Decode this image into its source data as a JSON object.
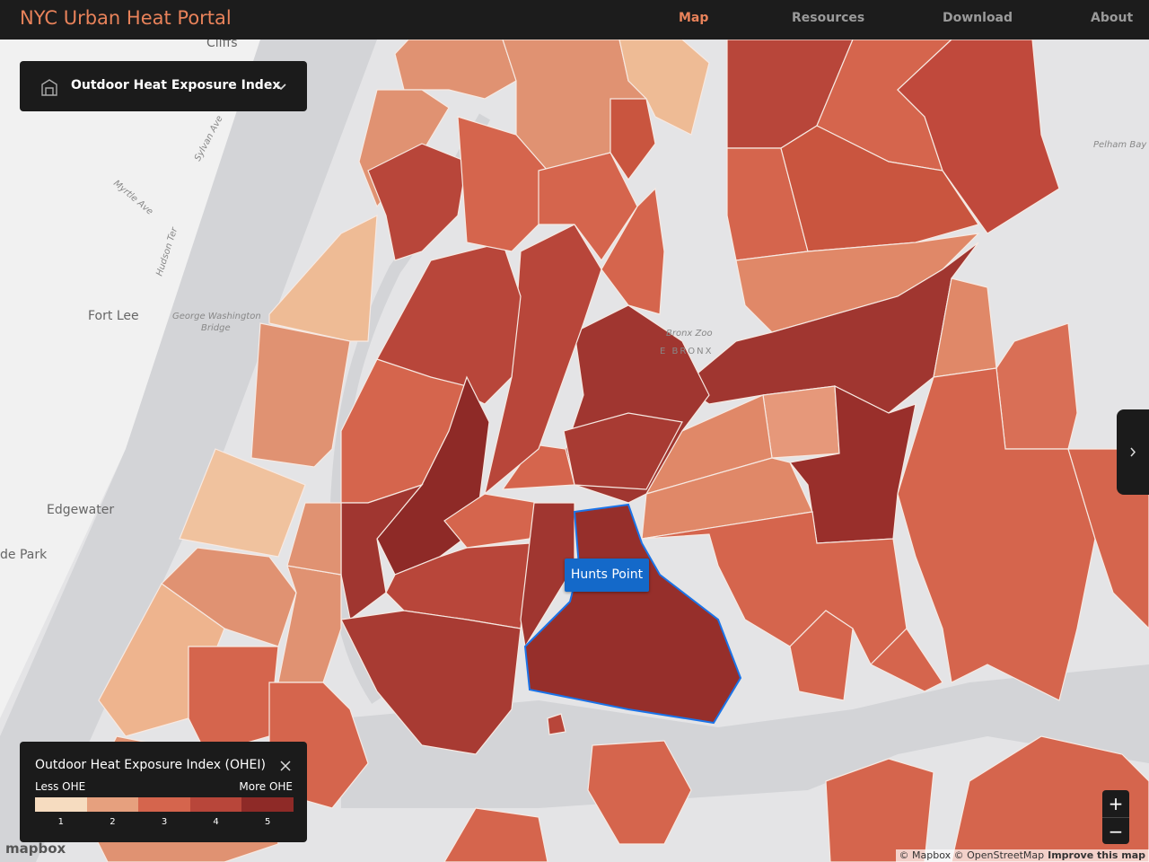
{
  "header": {
    "title": "NYC Urban Heat Portal",
    "nav": [
      "Map",
      "Resources",
      "Download",
      "About"
    ],
    "active": "Map"
  },
  "layer_selector": {
    "label": "Outdoor Heat Exposure Index"
  },
  "legend": {
    "title": "Outdoor Heat Exposure Index (OHEI)",
    "low_label": "Less OHE",
    "high_label": "More OHE",
    "classes": [
      {
        "label": 1,
        "color": "#f6dcc0"
      },
      {
        "label": 2,
        "color": "#e6a07e"
      },
      {
        "label": 3,
        "color": "#d5654d"
      },
      {
        "label": 4,
        "color": "#b8463a"
      },
      {
        "label": 5,
        "color": "#8e2a27"
      }
    ]
  },
  "tooltip": "Hunts Point",
  "map_labels": [
    "Cliffs",
    "Fort Lee",
    "George Washington",
    "Bridge",
    "Edgewater",
    "de Park",
    "Bronx Zoo",
    "E BRONX",
    "Pelham Bay",
    "Sylvan Ave",
    "Hudson Ter",
    "Myrtle Ave"
  ],
  "attribution": {
    "logo": "mapbox",
    "credits": "© Mapbox © OpenStreetMap",
    "improve": "Improve this map"
  },
  "zoom": {
    "in": "+",
    "out": "−"
  }
}
